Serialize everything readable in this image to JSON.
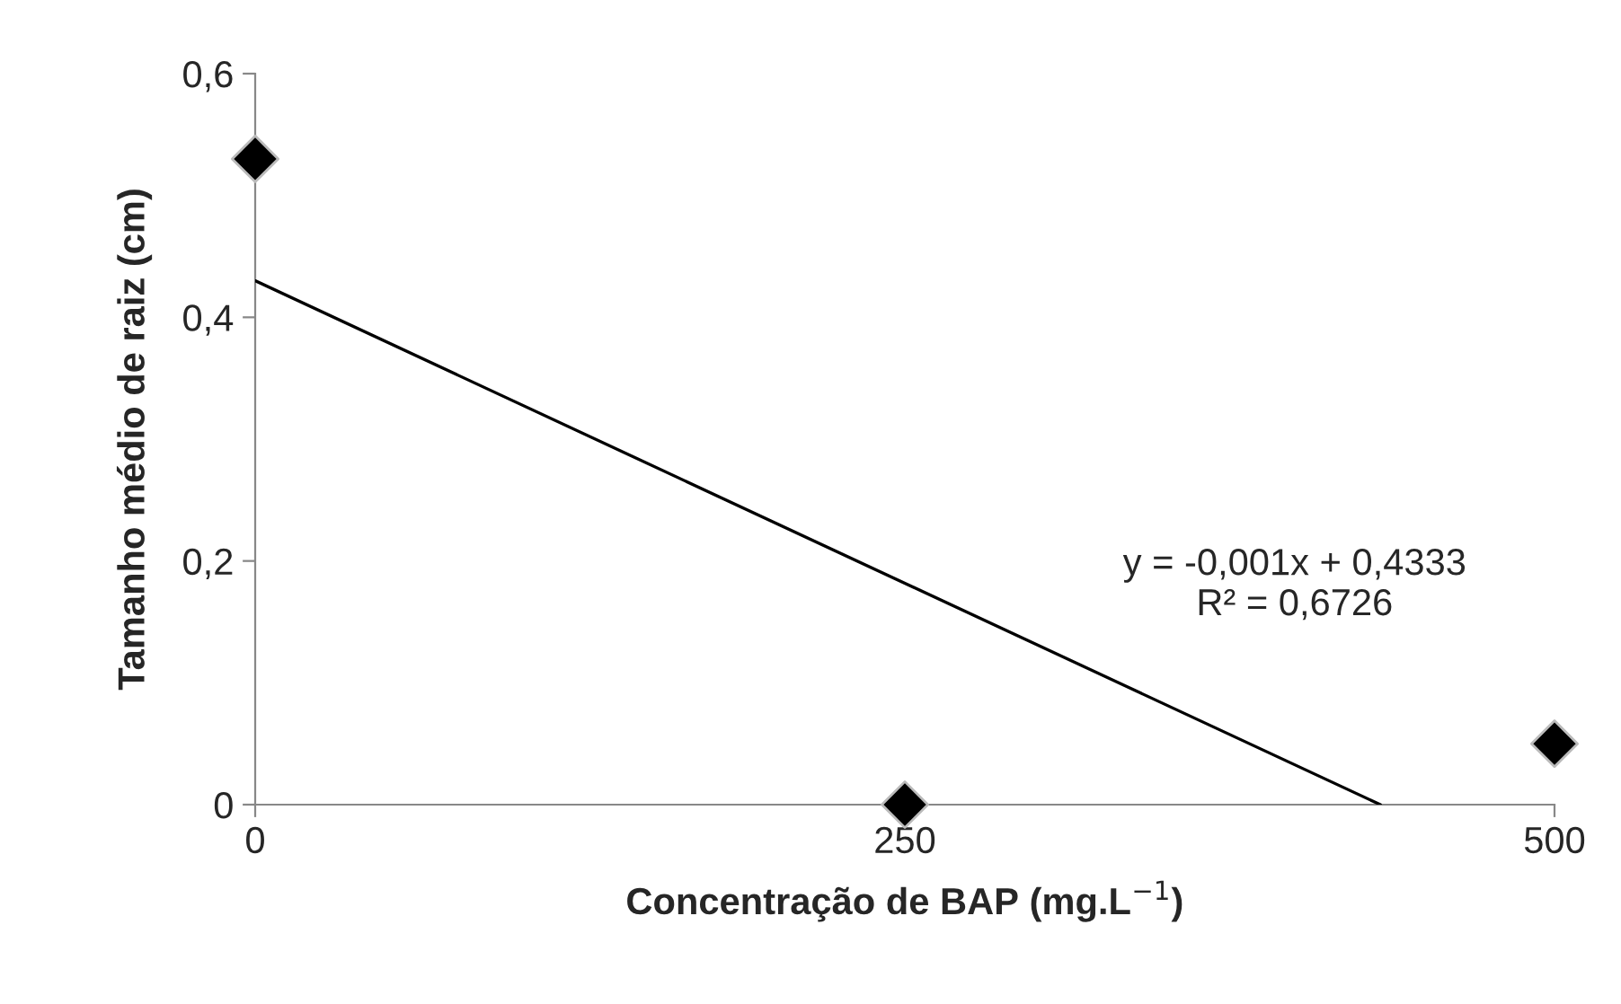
{
  "chart_data": {
    "type": "scatter",
    "xlabel": "Concentração de BAP (mg.L$^{−1}$)",
    "ylabel": "Tamanho médio de raiz (cm)",
    "x": [
      0,
      250,
      500
    ],
    "series": [
      {
        "color": "#000000",
        "values": [
          0.53,
          0,
          0.05
        ],
        "marker": "diamond"
      },
      {
        "type": "line",
        "color": "#000000",
        "x": [
          0,
          433
        ],
        "values": [
          0.43,
          0
        ],
        "marker": "none",
        "line_style": "solid"
      }
    ],
    "annotations": [
      "y = -0,001x + 0,4333\nR² = 0,6726"
    ],
    "xlim": [
      0,
      500
    ],
    "ylim": [
      0,
      0.6
    ],
    "xticks": [
      0,
      250,
      500
    ],
    "yticks": [
      0,
      {
        "value": 0.2,
        "label": "0,2"
      },
      {
        "value": 0.4,
        "label": "0,4"
      },
      {
        "value": 0.6,
        "label": "0,6"
      }
    ],
    "grid": false,
    "legend": false
  }
}
